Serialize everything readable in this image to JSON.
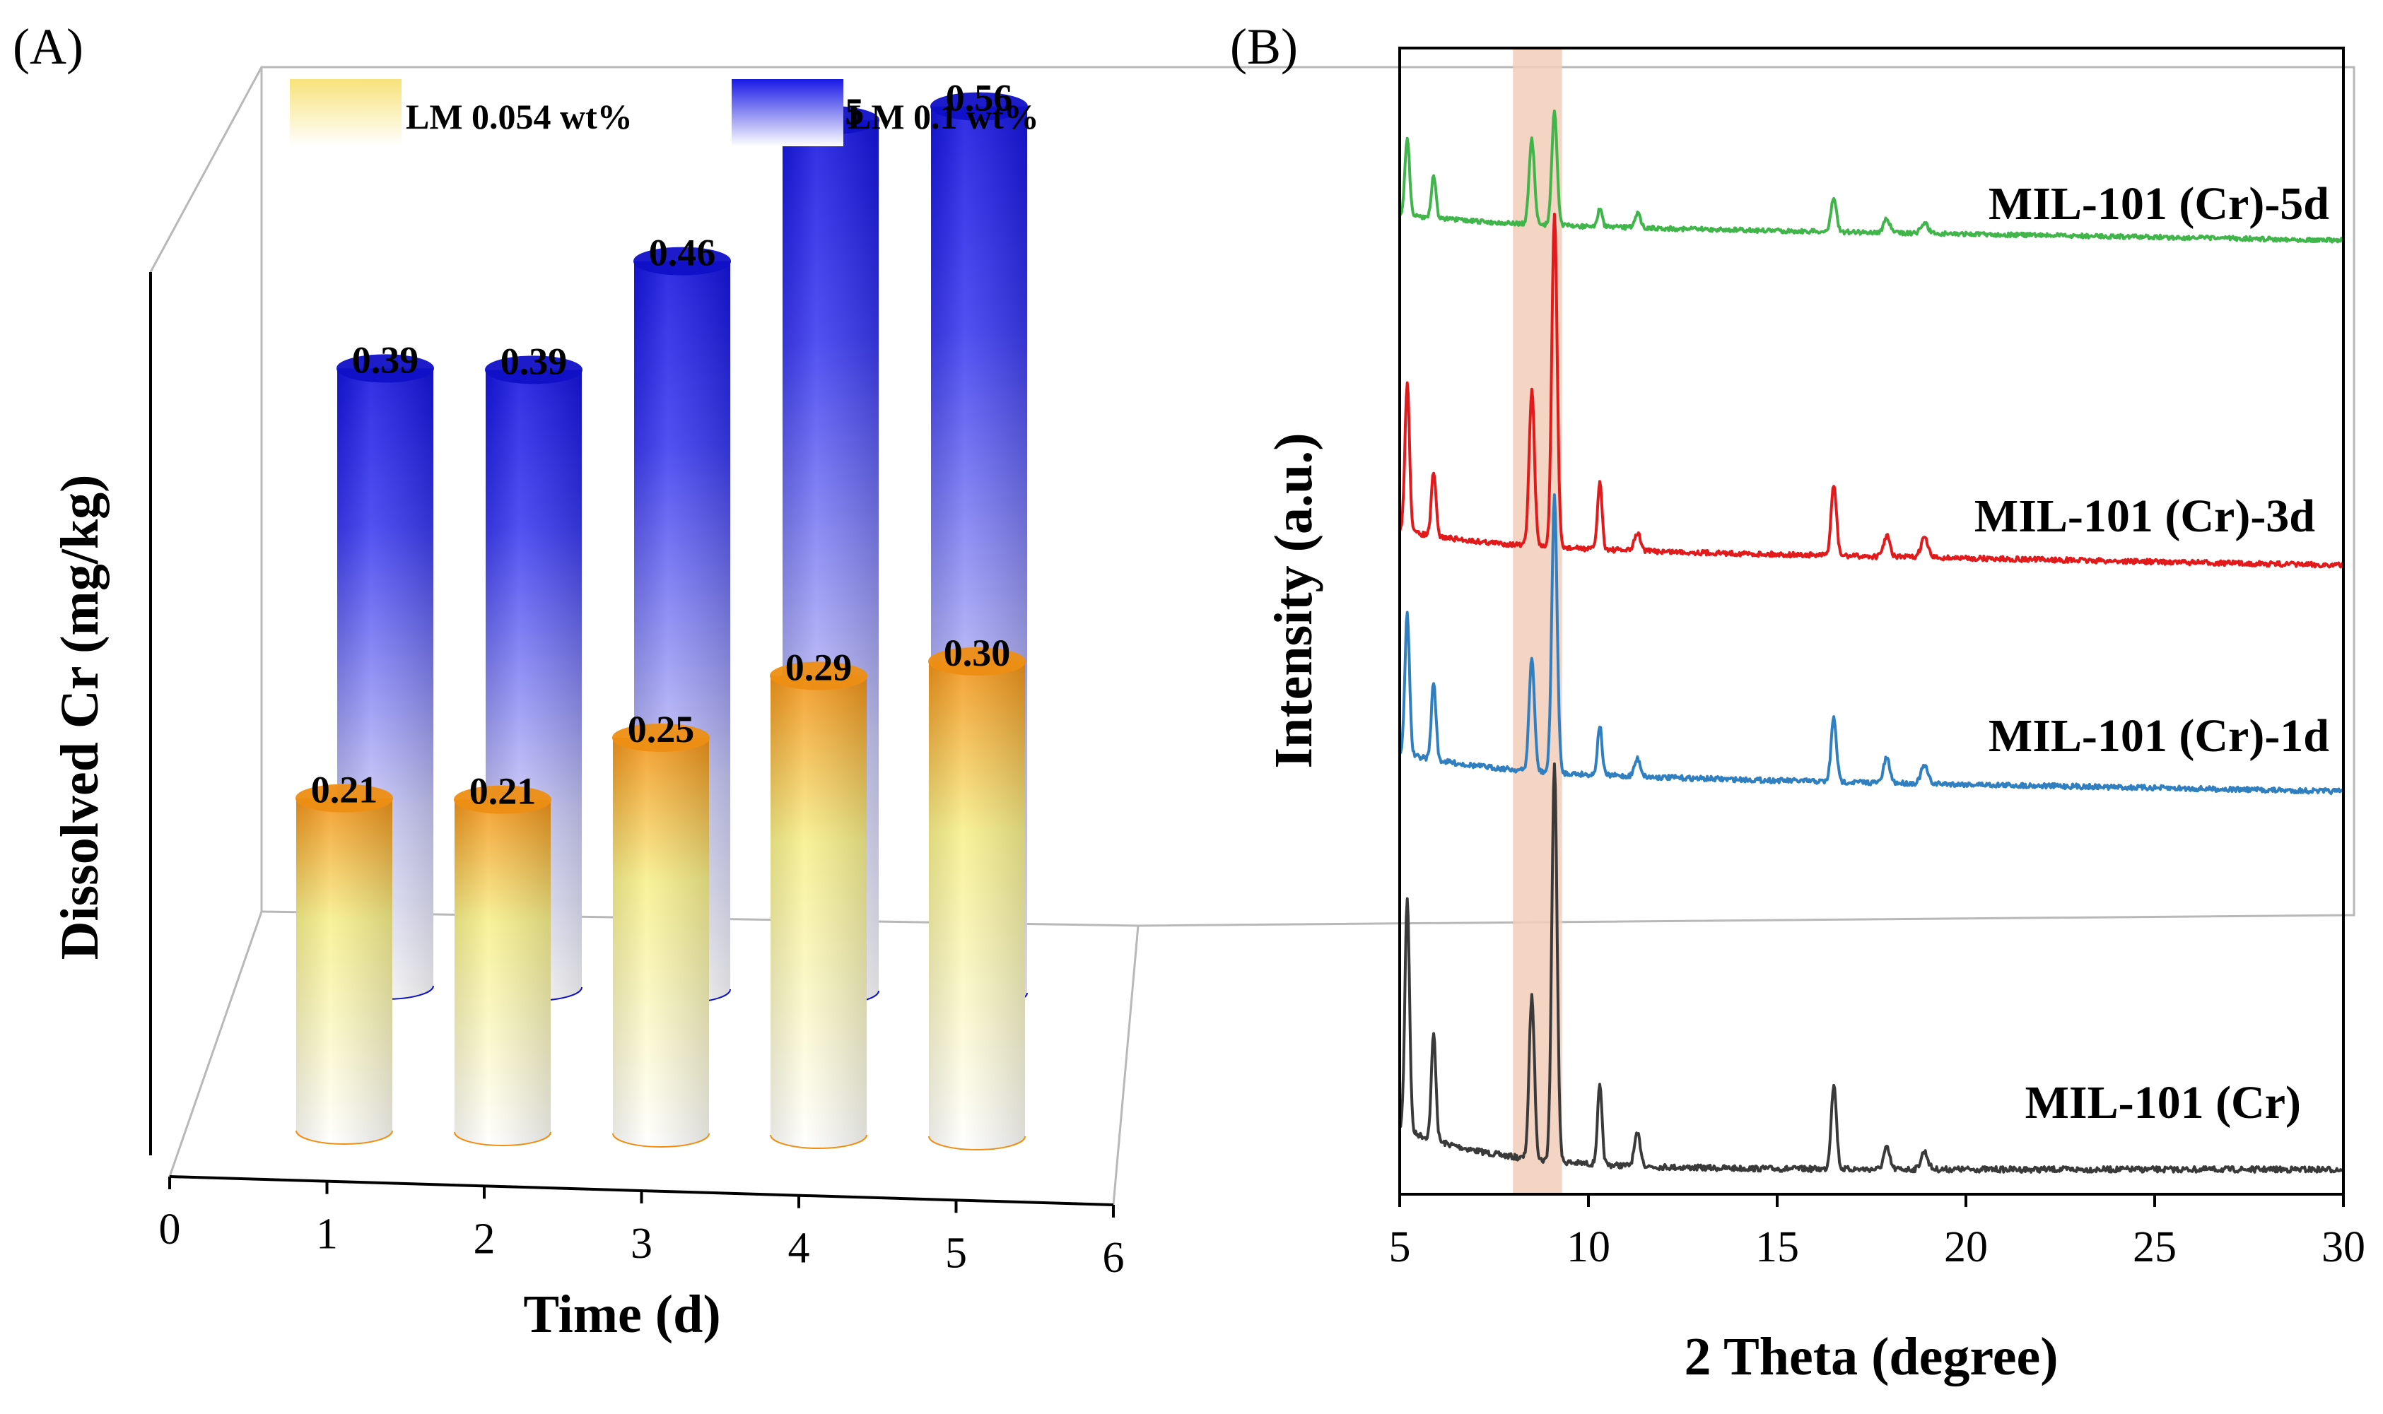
{
  "chart_data": [
    {
      "type": "bar",
      "panel_label": "(A)",
      "xlabel": "Time (d)",
      "ylabel": "Dissolved Cr (mg/kg)",
      "xlim": [
        0,
        6
      ],
      "x_ticks": [
        "0",
        "1",
        "2",
        "3",
        "4",
        "5",
        "6"
      ],
      "categories": [
        1,
        2,
        3,
        4,
        5
      ],
      "style": "3d-cylinder",
      "legend_position": "top",
      "series": [
        {
          "name": "LM 0.054 wt%",
          "values": [
            0.21,
            0.21,
            0.25,
            0.29,
            0.3
          ],
          "labels": [
            "0.21",
            "0.21",
            "0.25",
            "0.29",
            "0.30"
          ],
          "color_top": "#f39a1c",
          "color_bottom": "#ffffff",
          "color_mid": "#f6f29a"
        },
        {
          "name": "LM 0.1 wt%",
          "values": [
            0.39,
            0.39,
            0.46,
            0.55,
            0.56
          ],
          "labels": [
            "0.39",
            "0.39",
            "0.46",
            "0.55",
            "0.56"
          ],
          "color_top": "#1a1ae6",
          "color_bottom": "#ffffff"
        }
      ]
    },
    {
      "type": "line",
      "panel_label": "(B)",
      "xlabel": "2 Theta (degree)",
      "ylabel": "Intensity (a.u.)",
      "xlim": [
        5,
        30
      ],
      "x_ticks": [
        "5",
        "10",
        "15",
        "20",
        "25",
        "30"
      ],
      "highlight_band": [
        8.0,
        9.3
      ],
      "highlight_color": "#f2cdb8",
      "peaks": [
        5.2,
        5.9,
        8.5,
        9.1,
        10.3,
        11.3,
        16.5,
        17.9,
        18.9
      ],
      "series": [
        {
          "name": "MIL-101 (Cr)",
          "color": "#3a3a3a"
        },
        {
          "name": "MIL-101 (Cr)-1d",
          "color": "#2f7fc1"
        },
        {
          "name": "MIL-101 (Cr)-3d",
          "color": "#e31a1c"
        },
        {
          "name": "MIL-101 (Cr)-5d",
          "color": "#3fb54a"
        }
      ]
    }
  ]
}
